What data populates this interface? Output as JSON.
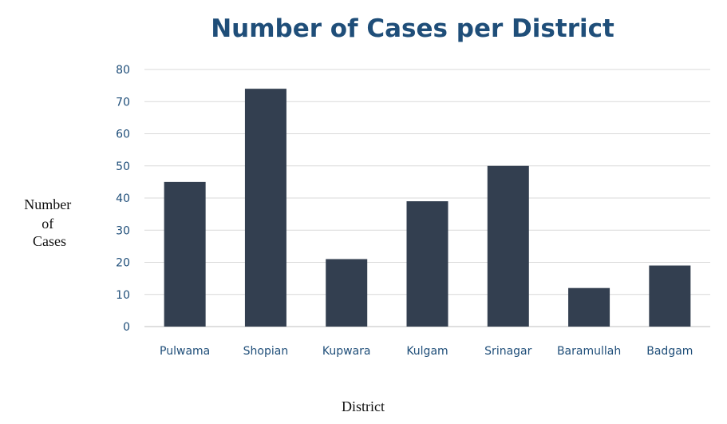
{
  "chart_data": {
    "type": "bar",
    "title": "Number of Cases per District",
    "xlabel": "District",
    "ylabel": "Number of Cases",
    "ylabel_lines": [
      "Number",
      "of",
      "Cases"
    ],
    "categories": [
      "Pulwama",
      "Shopian",
      "Kupwara",
      "Kulgam",
      "Srinagar",
      "Baramullah",
      "Badgam"
    ],
    "values": [
      45,
      74,
      21,
      39,
      50,
      12,
      19
    ],
    "ylim": [
      0,
      80
    ],
    "yticks": [
      "0",
      "10",
      "20",
      "30",
      "40",
      "50",
      "60",
      "70",
      "80"
    ],
    "grid": true,
    "legend": "none",
    "bar_color": "#333f50",
    "title_color": "#1f4e79"
  }
}
